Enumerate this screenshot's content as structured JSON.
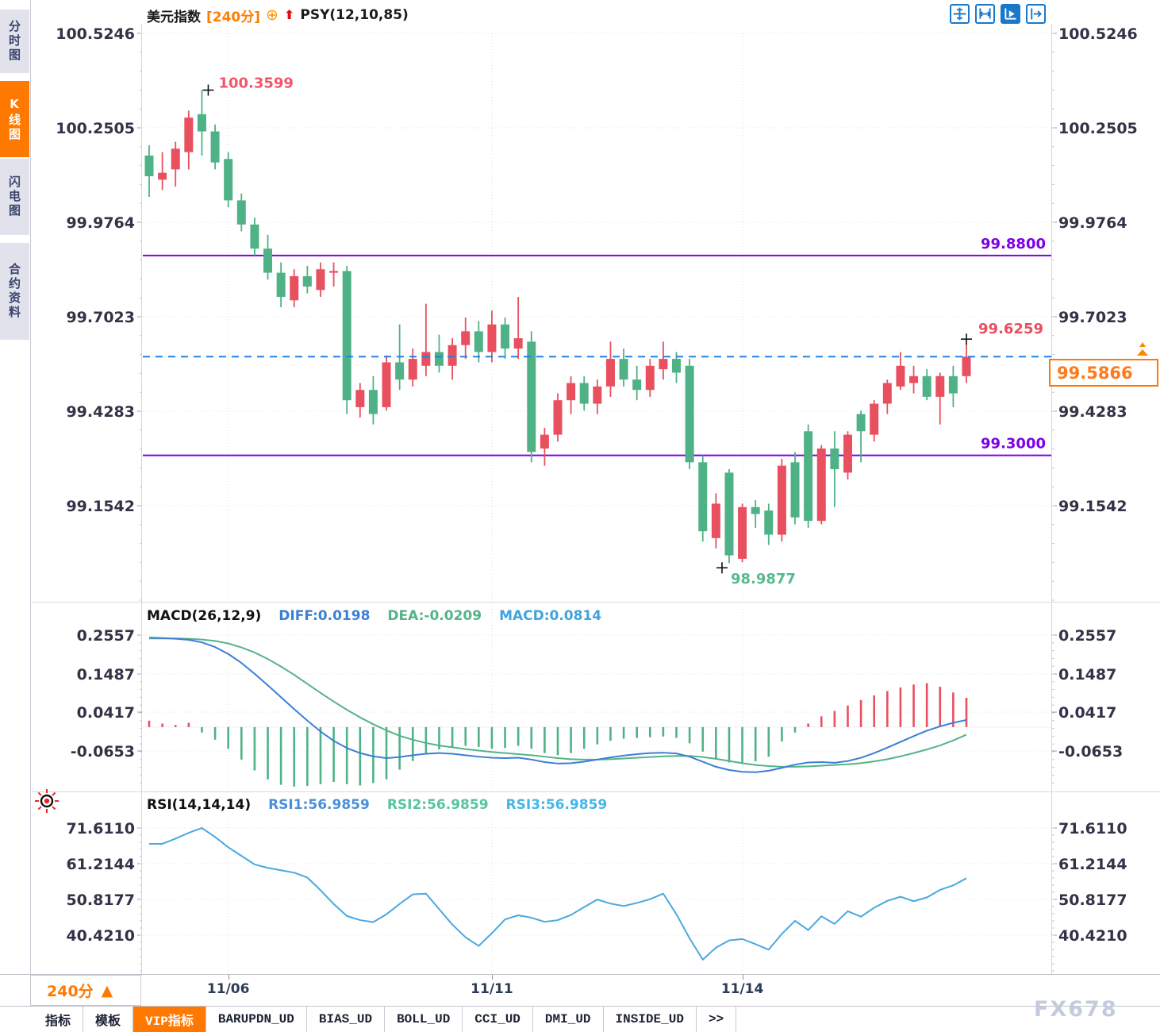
{
  "header": {
    "symbol": "美元指数",
    "period": "[240分]",
    "plus_icon": "⊕",
    "arrow_icon": "⬆",
    "indicator": "PSY(12,10,85)"
  },
  "toolbar": {
    "icons": [
      {
        "name": "move-tool",
        "active": false
      },
      {
        "name": "axis-scale-tool",
        "active": false
      },
      {
        "name": "axis-play-tool",
        "active": true
      },
      {
        "name": "pane-shift-tool",
        "active": false
      }
    ]
  },
  "sidebar": {
    "tabs": [
      {
        "label": "分时图",
        "active": false
      },
      {
        "label": "K线图",
        "active": true
      },
      {
        "label": "闪电图",
        "active": false
      },
      {
        "label": "合约资料",
        "active": false
      }
    ]
  },
  "period_selector": {
    "label": "240分",
    "arrow": "▲"
  },
  "bottom_tabs": {
    "tabs": [
      {
        "label": "指标",
        "active": false
      },
      {
        "label": "模板",
        "active": false
      },
      {
        "label": "VIP指标",
        "active": true
      },
      {
        "label": "BARUPDN_UD",
        "active": false
      },
      {
        "label": "BIAS_UD",
        "active": false
      },
      {
        "label": "BOLL_UD",
        "active": false
      },
      {
        "label": "CCI_UD",
        "active": false
      },
      {
        "label": "DMI_UD",
        "active": false
      },
      {
        "label": "INSIDE_UD",
        "active": false
      },
      {
        "label": ">>",
        "active": false
      }
    ]
  },
  "watermark": "FX678",
  "colors": {
    "up": "#e8505f",
    "down": "#4fb286",
    "support_line": "#7d00e8",
    "current_price_line": "#1e82e6",
    "accent_orange": "#ff7800",
    "diff_line": "#3b7fd6",
    "dea_line": "#53b487",
    "macd_label": "#3fa3dc",
    "rsi_line": "#4aa8e0",
    "rsi2_label": "#57c49c",
    "axis_text": "#333347",
    "grid": "#e2e2e6"
  },
  "chart_data": [
    {
      "name": "main",
      "type": "candlestick",
      "title": "美元指数 [240分]",
      "period": "240分",
      "y_ticks": [
        "100.5246",
        "100.2505",
        "99.9764",
        "99.7023",
        "99.4283",
        "99.1542"
      ],
      "y_tick_values": [
        100.5246,
        100.2505,
        99.9764,
        99.7023,
        99.4283,
        99.1542
      ],
      "date_ticks": [
        {
          "label": "11/06",
          "index": 6
        },
        {
          "label": "11/11",
          "index": 26
        },
        {
          "label": "11/14",
          "index": 45
        }
      ],
      "candles_ohlc": [
        [
          100.17,
          100.2,
          100.05,
          100.11
        ],
        [
          100.1,
          100.18,
          100.07,
          100.12
        ],
        [
          100.13,
          100.21,
          100.08,
          100.19
        ],
        [
          100.18,
          100.3,
          100.13,
          100.28
        ],
        [
          100.29,
          100.3599,
          100.17,
          100.24
        ],
        [
          100.24,
          100.26,
          100.13,
          100.15
        ],
        [
          100.16,
          100.18,
          100.02,
          100.04
        ],
        [
          100.04,
          100.06,
          99.95,
          99.97
        ],
        [
          99.97,
          99.99,
          99.88,
          99.9
        ],
        [
          99.9,
          99.94,
          99.81,
          99.83
        ],
        [
          99.83,
          99.86,
          99.73,
          99.76
        ],
        [
          99.75,
          99.84,
          99.73,
          99.82
        ],
        [
          99.82,
          99.85,
          99.77,
          99.79
        ],
        [
          99.78,
          99.86,
          99.76,
          99.84
        ],
        [
          99.83,
          99.86,
          99.79,
          99.835
        ],
        [
          99.835,
          99.85,
          99.42,
          99.46
        ],
        [
          99.44,
          99.51,
          99.41,
          99.49
        ],
        [
          99.49,
          99.53,
          99.39,
          99.42
        ],
        [
          99.44,
          99.59,
          99.43,
          99.57
        ],
        [
          99.57,
          99.68,
          99.49,
          99.52
        ],
        [
          99.52,
          99.61,
          99.5,
          99.58
        ],
        [
          99.56,
          99.74,
          99.53,
          99.6
        ],
        [
          99.6,
          99.65,
          99.54,
          99.56
        ],
        [
          99.56,
          99.64,
          99.52,
          99.62
        ],
        [
          99.62,
          99.7,
          99.58,
          99.66
        ],
        [
          99.66,
          99.69,
          99.57,
          99.6
        ],
        [
          99.6,
          99.72,
          99.57,
          99.68
        ],
        [
          99.68,
          99.7,
          99.58,
          99.61
        ],
        [
          99.61,
          99.76,
          99.58,
          99.64
        ],
        [
          99.63,
          99.66,
          99.28,
          99.31
        ],
        [
          99.32,
          99.38,
          99.27,
          99.36
        ],
        [
          99.36,
          99.48,
          99.34,
          99.46
        ],
        [
          99.46,
          99.53,
          99.42,
          99.51
        ],
        [
          99.51,
          99.53,
          99.43,
          99.45
        ],
        [
          99.45,
          99.52,
          99.42,
          99.5
        ],
        [
          99.5,
          99.63,
          99.47,
          99.58
        ],
        [
          99.58,
          99.61,
          99.5,
          99.52
        ],
        [
          99.52,
          99.56,
          99.46,
          99.49
        ],
        [
          99.49,
          99.58,
          99.47,
          99.56
        ],
        [
          99.55,
          99.63,
          99.52,
          99.58
        ],
        [
          99.58,
          99.6,
          99.51,
          99.54
        ],
        [
          99.56,
          99.58,
          99.26,
          99.28
        ],
        [
          99.28,
          99.3,
          99.05,
          99.08
        ],
        [
          99.06,
          99.19,
          99.03,
          99.16
        ],
        [
          99.25,
          99.26,
          98.9877,
          99.01
        ],
        [
          99.0,
          99.16,
          98.99,
          99.15
        ],
        [
          99.15,
          99.17,
          99.09,
          99.13
        ],
        [
          99.14,
          99.16,
          99.04,
          99.07
        ],
        [
          99.07,
          99.29,
          99.05,
          99.27
        ],
        [
          99.28,
          99.31,
          99.1,
          99.12
        ],
        [
          99.37,
          99.39,
          99.09,
          99.11
        ],
        [
          99.11,
          99.33,
          99.1,
          99.32
        ],
        [
          99.32,
          99.37,
          99.15,
          99.26
        ],
        [
          99.25,
          99.37,
          99.23,
          99.36
        ],
        [
          99.42,
          99.43,
          99.28,
          99.37
        ],
        [
          99.36,
          99.46,
          99.34,
          99.45
        ],
        [
          99.45,
          99.52,
          99.42,
          99.51
        ],
        [
          99.5,
          99.6,
          99.49,
          99.56
        ],
        [
          99.51,
          99.56,
          99.48,
          99.53
        ],
        [
          99.53,
          99.55,
          99.46,
          99.47
        ],
        [
          99.47,
          99.54,
          99.39,
          99.53
        ],
        [
          99.53,
          99.56,
          99.44,
          99.48
        ],
        [
          99.53,
          99.6259,
          99.51,
          99.5866
        ]
      ],
      "support_resistance_lines": [
        {
          "value": 99.88,
          "label": "99.8800"
        },
        {
          "value": 99.3,
          "label": "99.3000"
        }
      ],
      "current_price": {
        "value": 99.5866,
        "label": "99.5866"
      },
      "annotations": [
        {
          "name": "period-high",
          "index": 4,
          "price": 100.3599,
          "label": "100.3599",
          "color": "#f25668"
        },
        {
          "name": "period-low",
          "index": 44,
          "price": 98.9877,
          "label": "98.9877",
          "color": "#57b98e"
        },
        {
          "name": "recent-high",
          "index": 62,
          "price": 99.6259,
          "label": "99.6259",
          "color": "#e8505f"
        }
      ]
    },
    {
      "name": "macd",
      "type": "bar",
      "title": "MACD(26,12,9)",
      "legend": [
        {
          "label": "DIFF:0.0198",
          "color": "#3b7fd6"
        },
        {
          "label": "DEA:-0.0209",
          "color": "#53b487"
        },
        {
          "label": "MACD:0.0814",
          "color": "#3fa3dc"
        }
      ],
      "y_ticks": [
        "0.2557",
        "0.1487",
        "0.0417",
        "-0.0653"
      ],
      "y_tick_values": [
        0.2557,
        0.1487,
        0.0417,
        -0.0653
      ],
      "diff": [
        0.248,
        0.247,
        0.245,
        0.242,
        0.235,
        0.222,
        0.203,
        0.178,
        0.148,
        0.116,
        0.083,
        0.05,
        0.018,
        -0.012,
        -0.038,
        -0.058,
        -0.072,
        -0.081,
        -0.086,
        -0.083,
        -0.078,
        -0.074,
        -0.072,
        -0.074,
        -0.078,
        -0.082,
        -0.085,
        -0.086,
        -0.085,
        -0.09,
        -0.097,
        -0.101,
        -0.1,
        -0.096,
        -0.09,
        -0.084,
        -0.079,
        -0.075,
        -0.072,
        -0.071,
        -0.073,
        -0.082,
        -0.096,
        -0.11,
        -0.119,
        -0.124,
        -0.125,
        -0.121,
        -0.113,
        -0.104,
        -0.098,
        -0.097,
        -0.099,
        -0.094,
        -0.085,
        -0.072,
        -0.057,
        -0.041,
        -0.025,
        -0.01,
        0.002,
        0.012,
        0.0198
      ],
      "dea": [
        0.246,
        0.246,
        0.246,
        0.245,
        0.243,
        0.239,
        0.232,
        0.221,
        0.207,
        0.189,
        0.168,
        0.145,
        0.12,
        0.095,
        0.071,
        0.048,
        0.027,
        0.008,
        -0.009,
        -0.024,
        -0.035,
        -0.044,
        -0.051,
        -0.056,
        -0.061,
        -0.065,
        -0.069,
        -0.072,
        -0.075,
        -0.078,
        -0.082,
        -0.086,
        -0.089,
        -0.09,
        -0.09,
        -0.089,
        -0.087,
        -0.085,
        -0.083,
        -0.081,
        -0.08,
        -0.08,
        -0.083,
        -0.088,
        -0.094,
        -0.1,
        -0.105,
        -0.108,
        -0.11,
        -0.11,
        -0.109,
        -0.107,
        -0.105,
        -0.103,
        -0.1,
        -0.095,
        -0.089,
        -0.081,
        -0.072,
        -0.062,
        -0.051,
        -0.037,
        -0.0209
      ],
      "hist": [
        0.018,
        0.01,
        0.006,
        0.012,
        -0.015,
        -0.035,
        -0.06,
        -0.09,
        -0.12,
        -0.145,
        -0.16,
        -0.165,
        -0.163,
        -0.158,
        -0.152,
        -0.158,
        -0.162,
        -0.155,
        -0.145,
        -0.118,
        -0.094,
        -0.074,
        -0.062,
        -0.055,
        -0.052,
        -0.055,
        -0.06,
        -0.058,
        -0.052,
        -0.06,
        -0.072,
        -0.078,
        -0.072,
        -0.06,
        -0.048,
        -0.038,
        -0.032,
        -0.03,
        -0.028,
        -0.026,
        -0.03,
        -0.045,
        -0.068,
        -0.088,
        -0.098,
        -0.1,
        -0.095,
        -0.082,
        -0.04,
        -0.015,
        0.01,
        0.03,
        0.045,
        0.06,
        0.075,
        0.088,
        0.1,
        0.11,
        0.118,
        0.122,
        0.112,
        0.096,
        0.0814
      ]
    },
    {
      "name": "rsi",
      "type": "line",
      "title": "RSI(14,14,14)",
      "legend": [
        {
          "label": "RSI1:56.9859",
          "color": "#4a90d9"
        },
        {
          "label": "RSI2:56.9859",
          "color": "#57c49c"
        },
        {
          "label": "RSI3:56.9859",
          "color": "#45b6e8"
        }
      ],
      "y_ticks": [
        "71.6110",
        "61.2144",
        "50.8177",
        "40.4210"
      ],
      "y_tick_values": [
        71.611,
        61.2144,
        50.8177,
        40.421
      ],
      "values": [
        67.0,
        67.0,
        68.5,
        70.2,
        71.6,
        69.0,
        66.0,
        63.5,
        61.0,
        60.0,
        59.3,
        58.6,
        57.2,
        53.5,
        49.5,
        46.0,
        44.8,
        44.2,
        46.5,
        49.5,
        52.3,
        52.5,
        48.0,
        43.5,
        39.8,
        37.3,
        41.0,
        45.0,
        46.2,
        45.5,
        44.3,
        44.8,
        46.3,
        48.6,
        50.8,
        49.6,
        48.9,
        49.8,
        50.9,
        52.5,
        46.5,
        39.5,
        33.3,
        36.8,
        38.9,
        39.3,
        37.8,
        36.2,
        40.8,
        44.6,
        41.9,
        45.9,
        43.7,
        47.4,
        45.8,
        48.4,
        50.4,
        51.6,
        50.3,
        51.4,
        53.6,
        54.9,
        56.9859
      ]
    }
  ]
}
